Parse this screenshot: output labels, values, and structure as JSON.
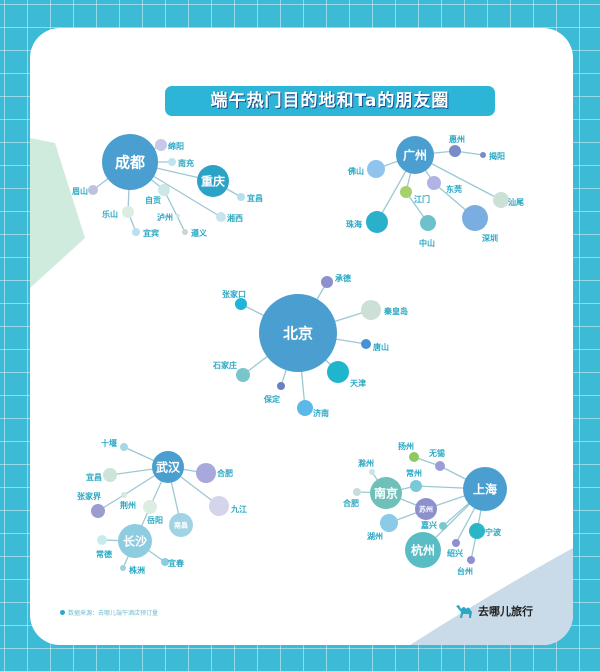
{
  "title": "端午热门目的地和Ta的朋友圈",
  "colors": {
    "background": "#3dbad6",
    "title_bg": "#2db5d8",
    "hub": "#4a9fd0",
    "edge": "#9cc8d4",
    "label": "#2aa8c4"
  },
  "clusters": [
    {
      "nodes": [
        {
          "label": "成都",
          "color": "#4a9fd0"
        },
        {
          "label": "绵阳",
          "color": "#c8c8e8"
        },
        {
          "label": "南充",
          "color": "#c0e4ef"
        },
        {
          "label": "重庆",
          "color": "#2ba3c7"
        },
        {
          "label": "宜昌",
          "color": "#b8dff0"
        },
        {
          "label": "眉山",
          "color": "#c0c0e0"
        },
        {
          "label": "自贡",
          "color": "#cde8e4"
        },
        {
          "label": "乐山",
          "color": "#dceee0"
        },
        {
          "label": "泸州",
          "color": "#d0e8e8"
        },
        {
          "label": "宜宾",
          "color": "#b8e0ee"
        },
        {
          "label": "遵义",
          "color": "#c8d8cc"
        },
        {
          "label": "湘西",
          "color": "#c8e4ec"
        }
      ],
      "edges": [
        [
          "成都",
          "绵阳"
        ],
        [
          "成都",
          "南充"
        ],
        [
          "成都",
          "重庆"
        ],
        [
          "重庆",
          "宜昌"
        ],
        [
          "成都",
          "眉山"
        ],
        [
          "成都",
          "自贡"
        ],
        [
          "成都",
          "湘西"
        ],
        [
          "自贡",
          "遵义"
        ],
        [
          "成都",
          "乐山"
        ],
        [
          "乐山",
          "宜宾"
        ]
      ]
    },
    {
      "nodes": [
        {
          "label": "广州",
          "color": "#4a9fd0"
        },
        {
          "label": "惠州",
          "color": "#7a8cc8"
        },
        {
          "label": "揭阳",
          "color": "#7a8cc8"
        },
        {
          "label": "佛山",
          "color": "#8fc4ec"
        },
        {
          "label": "东莞",
          "color": "#b0b4e4"
        },
        {
          "label": "江门",
          "color": "#a6d06a"
        },
        {
          "label": "汕尾",
          "color": "#cde0d8"
        },
        {
          "label": "珠海",
          "color": "#2bb0cc"
        },
        {
          "label": "中山",
          "color": "#6ec0cc"
        },
        {
          "label": "深圳",
          "color": "#7aaee0"
        }
      ],
      "edges": [
        [
          "广州",
          "惠州"
        ],
        [
          "惠州",
          "揭阳"
        ],
        [
          "广州",
          "佛山"
        ],
        [
          "广州",
          "珠海"
        ],
        [
          "广州",
          "江门"
        ],
        [
          "江门",
          "中山"
        ],
        [
          "广州",
          "东莞"
        ],
        [
          "东莞",
          "深圳"
        ],
        [
          "广州",
          "汕尾"
        ]
      ]
    },
    {
      "nodes": [
        {
          "label": "北京",
          "color": "#4a9fd0"
        },
        {
          "label": "承德",
          "color": "#8c90cc"
        },
        {
          "label": "张家口",
          "color": "#1fb5d8"
        },
        {
          "label": "秦皇岛",
          "color": "#cde0d8"
        },
        {
          "label": "唐山",
          "color": "#4a90d6"
        },
        {
          "label": "天津",
          "color": "#1fb5cc"
        },
        {
          "label": "济南",
          "color": "#5cb8e8"
        },
        {
          "label": "保定",
          "color": "#6a80c0"
        },
        {
          "label": "石家庄",
          "color": "#7ac4cc"
        }
      ],
      "edges": [
        [
          "北京",
          "承德"
        ],
        [
          "北京",
          "张家口"
        ],
        [
          "北京",
          "秦皇岛"
        ],
        [
          "北京",
          "唐山"
        ],
        [
          "北京",
          "天津"
        ],
        [
          "北京",
          "济南"
        ],
        [
          "北京",
          "保定"
        ],
        [
          "北京",
          "石家庄"
        ]
      ]
    },
    {
      "nodes": [
        {
          "label": "武汉",
          "color": "#4a9fd0"
        },
        {
          "label": "十堰",
          "color": "#a4d8e4"
        },
        {
          "label": "合肥",
          "color": "#a8a8dc"
        },
        {
          "label": "宜昌",
          "color": "#cde4da"
        },
        {
          "label": "张家界",
          "color": "#9c9cd0"
        },
        {
          "label": "荆州",
          "color": "#d0ecdc"
        },
        {
          "label": "岳阳",
          "color": "#dceee4"
        },
        {
          "label": "南昌",
          "color": "#a0d4e4"
        },
        {
          "label": "九江",
          "color": "#d4d4ec"
        },
        {
          "label": "长沙",
          "color": "#8ecce0"
        },
        {
          "label": "常德",
          "color": "#c8ecee"
        },
        {
          "label": "株洲",
          "color": "#a0d0dc"
        },
        {
          "label": "宜春",
          "color": "#8ccce0"
        }
      ],
      "edges": [
        [
          "武汉",
          "十堰"
        ],
        [
          "武汉",
          "合肥"
        ],
        [
          "武汉",
          "宜昌"
        ],
        [
          "武汉",
          "荆州"
        ],
        [
          "荆州",
          "张家界"
        ],
        [
          "武汉",
          "岳阳"
        ],
        [
          "岳阳",
          "长沙"
        ],
        [
          "武汉",
          "南昌"
        ],
        [
          "武汉",
          "九江"
        ],
        [
          "长沙",
          "常德"
        ],
        [
          "长沙",
          "株洲"
        ],
        [
          "长沙",
          "宜春"
        ]
      ]
    },
    {
      "nodes": [
        {
          "label": "上海",
          "color": "#4a9fd0"
        },
        {
          "label": "扬州",
          "color": "#90c860"
        },
        {
          "label": "无锡",
          "color": "#9c9cd8"
        },
        {
          "label": "滁州",
          "color": "#c8e4e4"
        },
        {
          "label": "常州",
          "color": "#7ac8d8"
        },
        {
          "label": "南京",
          "color": "#6ec0b8"
        },
        {
          "label": "合肥",
          "color": "#c8ddd8"
        },
        {
          "label": "苏州",
          "color": "#8c90cc"
        },
        {
          "label": "湖州",
          "color": "#8ccbe8"
        },
        {
          "label": "嘉兴",
          "color": "#7ac8cc"
        },
        {
          "label": "杭州",
          "color": "#5abcc4"
        },
        {
          "label": "宁波",
          "color": "#2bb6c8"
        },
        {
          "label": "绍兴",
          "color": "#9090d0"
        },
        {
          "label": "台州",
          "color": "#9090d0"
        }
      ],
      "edges": [
        [
          "上海",
          "无锡"
        ],
        [
          "无锡",
          "扬州"
        ],
        [
          "上海",
          "常州"
        ],
        [
          "常州",
          "南京"
        ],
        [
          "南京",
          "滁州"
        ],
        [
          "南京",
          "合肥"
        ],
        [
          "南京",
          "苏州"
        ],
        [
          "苏州",
          "上海"
        ],
        [
          "苏州",
          "湖州"
        ],
        [
          "上海",
          "杭州"
        ],
        [
          "上海",
          "嘉兴"
        ],
        [
          "上海",
          "宁波"
        ],
        [
          "宁波",
          "台州"
        ],
        [
          "上海",
          "绍兴"
        ]
      ]
    }
  ],
  "footer": {
    "source": "数据来源：去哪儿端午酒店预订量",
    "logo_text": "去哪儿旅行",
    "logo_icon": "camel-icon"
  }
}
